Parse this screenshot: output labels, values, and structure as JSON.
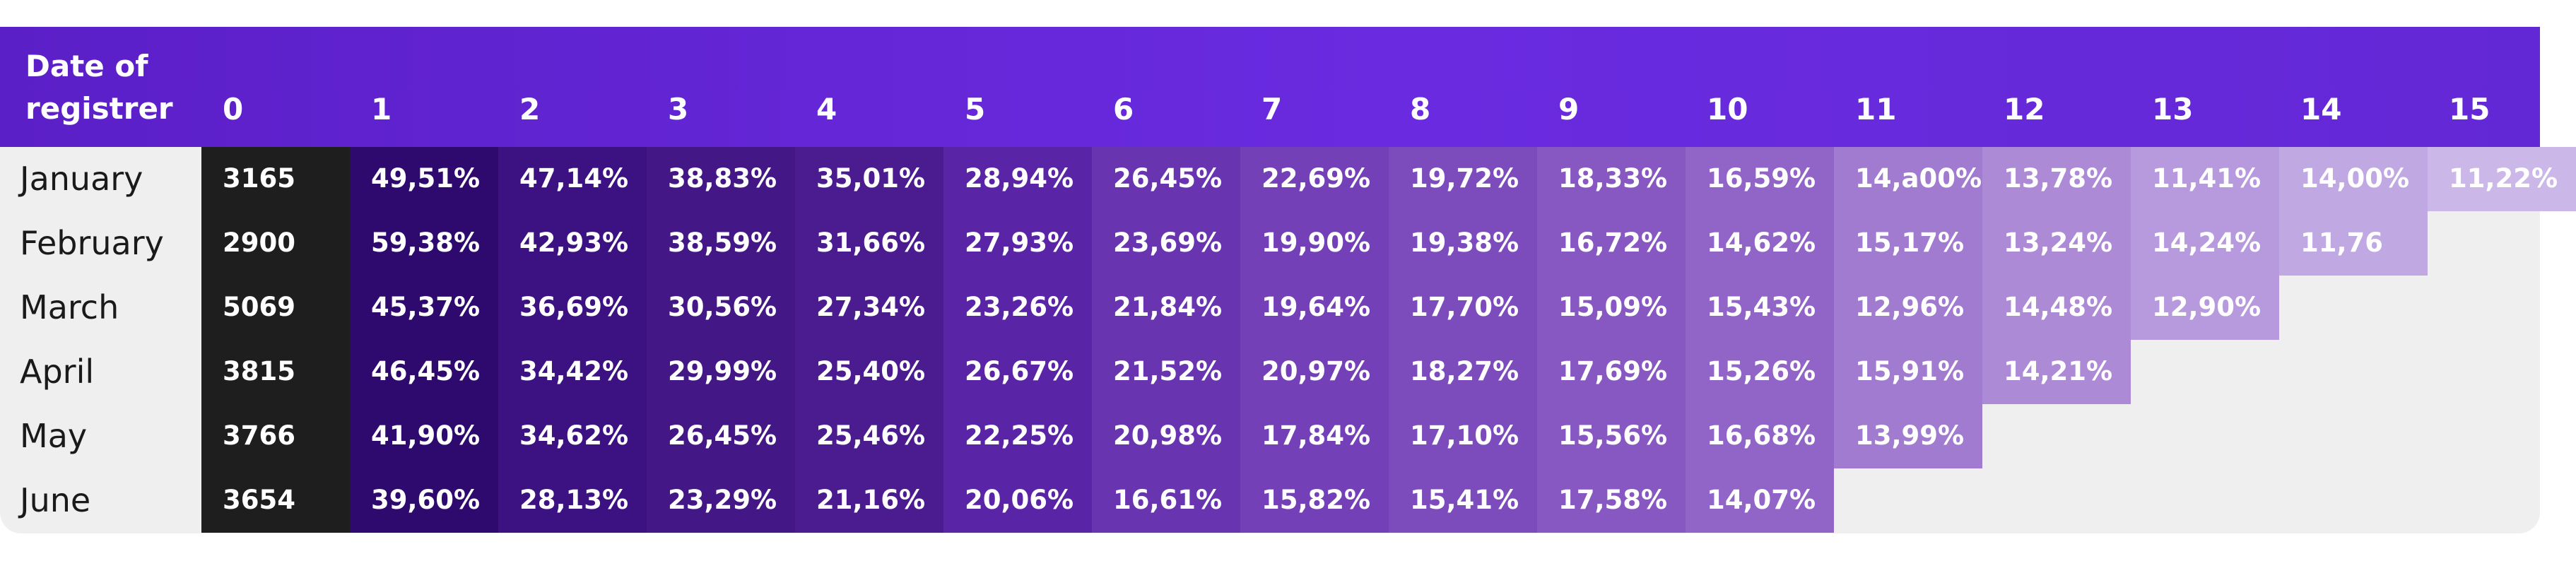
{
  "chart_data": {
    "type": "table",
    "header_first": "Date of registrer",
    "columns": [
      "0",
      "1",
      "2",
      "3",
      "4",
      "5",
      "6",
      "7",
      "8",
      "9",
      "10",
      "11",
      "12",
      "13",
      "14",
      "15"
    ],
    "rows": [
      {
        "label": "January",
        "values": [
          "3165",
          "49,51%",
          "47,14%",
          "38,83%",
          "35,01%",
          "28,94%",
          "26,45%",
          "22,69%",
          "19,72%",
          "18,33%",
          "16,59%",
          "14,a00%",
          "13,78%",
          "11,41%",
          "14,00%",
          "11,22%"
        ]
      },
      {
        "label": "February",
        "values": [
          "2900",
          "59,38%",
          "42,93%",
          "38,59%",
          "31,66%",
          "27,93%",
          "23,69%",
          "19,90%",
          "19,38%",
          "16,72%",
          "14,62%",
          "15,17%",
          "13,24%",
          "14,24%",
          "11,76"
        ]
      },
      {
        "label": "March",
        "values": [
          "5069",
          "45,37%",
          "36,69%",
          "30,56%",
          "27,34%",
          "23,26%",
          "21,84%",
          "19,64%",
          "17,70%",
          "15,09%",
          "15,43%",
          "12,96%",
          "14,48%",
          "12,90%"
        ]
      },
      {
        "label": "April",
        "values": [
          "3815",
          "46,45%",
          "34,42%",
          "29,99%",
          "25,40%",
          "26,67%",
          "21,52%",
          "20,97%",
          "18,27%",
          "17,69%",
          "15,26%",
          "15,91%",
          "14,21%"
        ]
      },
      {
        "label": "May",
        "values": [
          "3766",
          "41,90%",
          "34,62%",
          "26,45%",
          "25,46%",
          "22,25%",
          "20,98%",
          "17,84%",
          "17,10%",
          "15,56%",
          "16,68%",
          "13,99%"
        ]
      },
      {
        "label": "June",
        "values": [
          "3654",
          "39,60%",
          "28,13%",
          "23,29%",
          "21,16%",
          "20,06%",
          "16,61%",
          "15,82%",
          "15,41%",
          "17,58%",
          "14,07%"
        ]
      }
    ],
    "colors": {
      "header": "#5f23cf",
      "count_column": "#1e1e1e",
      "column_shades": [
        "#1e1e1e",
        "#2e0a6e",
        "#3c1282",
        "#431785",
        "#4a1c8f",
        "#5a24a6",
        "#6834b0",
        "#7440b7",
        "#7d4cbc",
        "#8758c2",
        "#9164c8",
        "#a07bd0",
        "#ac8ad6",
        "#b79ade",
        "#c0a8e2",
        "#cbb8e8"
      ],
      "background": "#efefef"
    }
  }
}
